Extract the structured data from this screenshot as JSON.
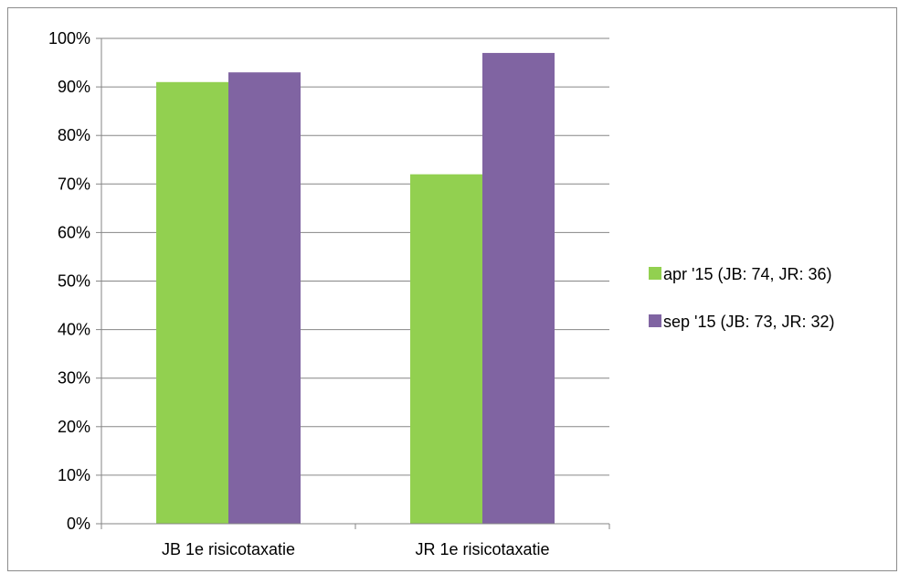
{
  "chart_data": {
    "type": "bar",
    "categories": [
      "JB 1e risicotaxatie",
      "JR 1e risicotaxatie"
    ],
    "series": [
      {
        "name": "apr '15 (JB: 74, JR: 36)",
        "values": [
          0.91,
          0.72
        ],
        "color": "#92d050"
      },
      {
        "name": "sep '15 (JB: 73, JR: 32)",
        "values": [
          0.93,
          0.97
        ],
        "color": "#8064a2"
      }
    ],
    "ylim": [
      0,
      1
    ],
    "yticks": [
      0,
      0.1,
      0.2,
      0.3,
      0.4,
      0.5,
      0.6,
      0.7,
      0.8,
      0.9,
      1.0
    ],
    "ytick_labels": [
      "0%",
      "10%",
      "20%",
      "30%",
      "40%",
      "50%",
      "60%",
      "70%",
      "80%",
      "90%",
      "100%"
    ],
    "grid": true,
    "legend_position": "right"
  }
}
